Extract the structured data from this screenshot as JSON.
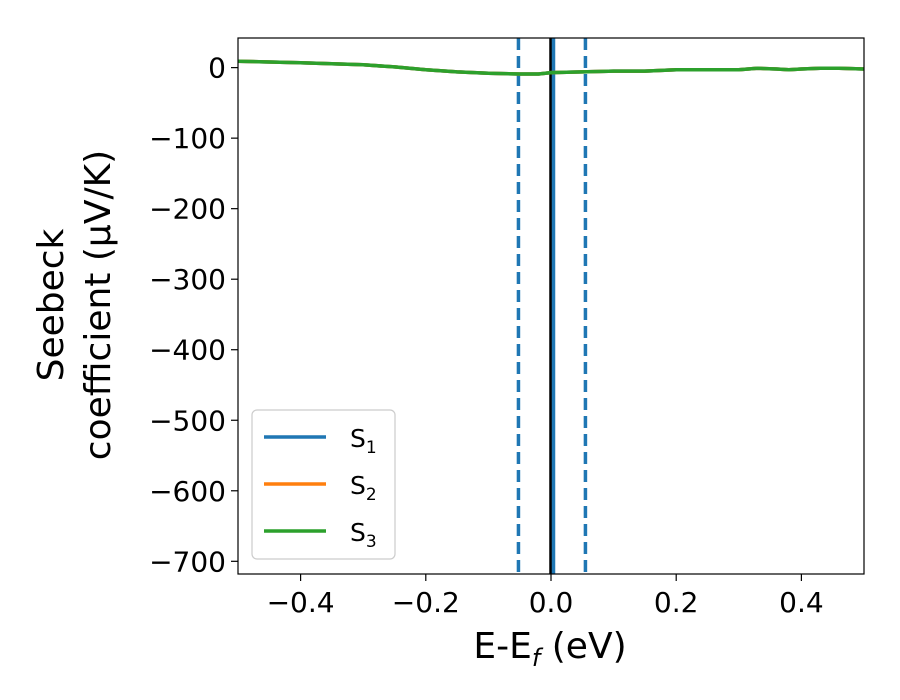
{
  "chart_data": {
    "type": "line",
    "xlabel_main": "E-E",
    "xlabel_sub": "f",
    "xlabel_unit": " (eV)",
    "ylabel_line1": "Seebeck",
    "ylabel_line2": "coefficient  (μV/K)",
    "xlim": [
      -0.5,
      0.5
    ],
    "ylim": [
      -718,
      42
    ],
    "xticks": [
      -0.4,
      -0.2,
      0.0,
      0.2,
      0.4
    ],
    "xtick_labels": [
      "−0.4",
      "−0.2",
      "0.0",
      "0.2",
      "0.4"
    ],
    "yticks": [
      0,
      -100,
      -200,
      -300,
      -400,
      -500,
      -600,
      -700
    ],
    "ytick_labels": [
      "0",
      "−100",
      "−200",
      "−300",
      "−400",
      "−500",
      "−600",
      "−700"
    ],
    "grid": false,
    "legend_position": "lower-left",
    "series": [
      {
        "name": "S",
        "name_sub": "1",
        "color": "#1f77b4",
        "x": [
          -0.5,
          -0.4,
          -0.3,
          -0.25,
          -0.2,
          -0.15,
          -0.1,
          -0.05,
          -0.02,
          0.0,
          0.05,
          0.1,
          0.15,
          0.2,
          0.25,
          0.3,
          0.33,
          0.36,
          0.38,
          0.4,
          0.43,
          0.46,
          0.5
        ],
        "y": [
          9,
          7,
          4,
          1,
          -3,
          -6,
          -8,
          -9,
          -9,
          -7,
          -6,
          -5,
          -5,
          -3,
          -3,
          -3,
          -1,
          -2,
          -3,
          -2,
          -1,
          -1,
          -2
        ]
      },
      {
        "name": "S",
        "name_sub": "2",
        "color": "#ff7f0e",
        "x": [
          -0.5,
          -0.4,
          -0.3,
          -0.25,
          -0.2,
          -0.15,
          -0.1,
          -0.05,
          -0.02,
          0.0,
          0.05,
          0.1,
          0.15,
          0.2,
          0.25,
          0.3,
          0.33,
          0.36,
          0.38,
          0.4,
          0.43,
          0.46,
          0.5
        ],
        "y": [
          9,
          7,
          4,
          1,
          -3,
          -6,
          -8,
          -9,
          -9,
          -7,
          -6,
          -5,
          -5,
          -3,
          -3,
          -3,
          -1,
          -2,
          -3,
          -2,
          -1,
          -1,
          -2
        ]
      },
      {
        "name": "S",
        "name_sub": "3",
        "color": "#2ca02c",
        "x": [
          -0.5,
          -0.4,
          -0.3,
          -0.25,
          -0.2,
          -0.15,
          -0.1,
          -0.05,
          -0.02,
          0.0,
          0.05,
          0.1,
          0.15,
          0.2,
          0.25,
          0.3,
          0.33,
          0.36,
          0.38,
          0.4,
          0.43,
          0.46,
          0.5
        ],
        "y": [
          9,
          7,
          4,
          1,
          -3,
          -6,
          -8,
          -9,
          -9,
          -7,
          -6,
          -5,
          -5,
          -3,
          -3,
          -3,
          -1,
          -2,
          -3,
          -2,
          -1,
          -1,
          -2
        ]
      }
    ],
    "vertical_lines": [
      {
        "x": -0.052,
        "style": "dashed",
        "color": "#1f77b4"
      },
      {
        "x": 0.0,
        "style": "solid",
        "color": "#000000"
      },
      {
        "x": 0.004,
        "style": "solid",
        "color": "#1f77b4"
      },
      {
        "x": 0.055,
        "style": "dashed",
        "color": "#1f77b4"
      }
    ]
  }
}
